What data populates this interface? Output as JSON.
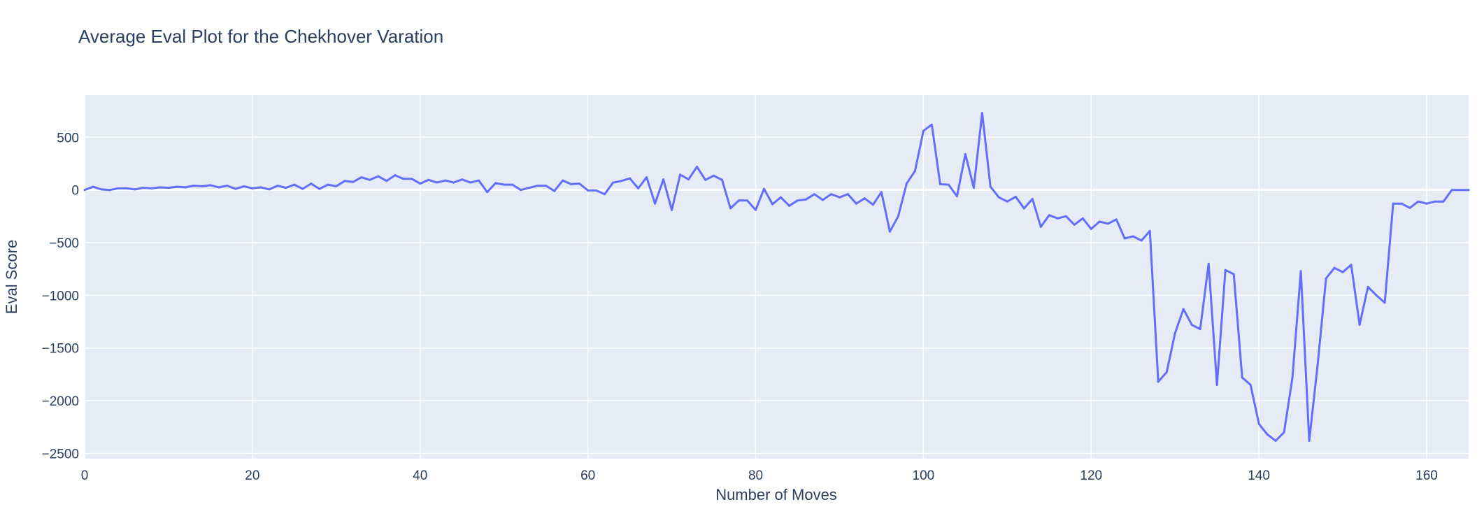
{
  "chart_data": {
    "type": "line",
    "title": "Average Eval Plot for the Chekhover Varation",
    "xlabel": "Number of Moves",
    "ylabel": "Eval Score",
    "xlim": [
      0,
      165
    ],
    "ylim": [
      -2550,
      900
    ],
    "xticks": [
      0,
      20,
      40,
      60,
      80,
      100,
      120,
      140,
      160
    ],
    "yticks": [
      500,
      0,
      -500,
      -1000,
      -1500,
      -2000,
      -2500
    ],
    "ytick_labels": [
      "500",
      "0",
      "−500",
      "−1000",
      "−1500",
      "−2000",
      "−2500"
    ],
    "grid": true,
    "plot_background": "#e5ecf6",
    "line_color": "#636efa",
    "series": [
      {
        "x": [
          0,
          1,
          2,
          3,
          4,
          5,
          6,
          7,
          8,
          9,
          10,
          11,
          12,
          13,
          14,
          15,
          16,
          17,
          18,
          19,
          20,
          21,
          22,
          23,
          24,
          25,
          26,
          27,
          28,
          29,
          30,
          31,
          32,
          33,
          34,
          35,
          36,
          37,
          38,
          39,
          40,
          41,
          42,
          43,
          44,
          45,
          46,
          47,
          48,
          49,
          50,
          51,
          52,
          53,
          54,
          55,
          56,
          57,
          58,
          59,
          60,
          61,
          62,
          63,
          64,
          65,
          66,
          67,
          68,
          69,
          70,
          71,
          72,
          73,
          74,
          75,
          76,
          77,
          78,
          79,
          80,
          81,
          82,
          83,
          84,
          85,
          86,
          87,
          88,
          89,
          90,
          91,
          92,
          93,
          94,
          95,
          96,
          97,
          98,
          99,
          100,
          101,
          102,
          103,
          104,
          105,
          106,
          107,
          108,
          109,
          110,
          111,
          112,
          113,
          114,
          115,
          116,
          117,
          118,
          119,
          120,
          121,
          122,
          123,
          124,
          125,
          126,
          127,
          128,
          129,
          130,
          131,
          132,
          133,
          134,
          135,
          136,
          137,
          138,
          139,
          140,
          141,
          142,
          143,
          144,
          145,
          146,
          147,
          148,
          149,
          150,
          151,
          152,
          153,
          154,
          155,
          156,
          157,
          158,
          159,
          160,
          161,
          162,
          163,
          164,
          165
        ],
        "y": [
          0,
          30,
          5,
          0,
          15,
          15,
          5,
          20,
          15,
          25,
          20,
          30,
          25,
          40,
          35,
          45,
          25,
          40,
          10,
          35,
          15,
          25,
          5,
          40,
          20,
          50,
          10,
          60,
          10,
          50,
          35,
          85,
          75,
          120,
          95,
          130,
          85,
          140,
          105,
          105,
          60,
          95,
          70,
          90,
          70,
          100,
          70,
          90,
          -20,
          65,
          50,
          50,
          0,
          20,
          40,
          40,
          -10,
          90,
          55,
          60,
          -5,
          -5,
          -40,
          70,
          85,
          110,
          15,
          120,
          -130,
          100,
          -190,
          145,
          100,
          220,
          95,
          135,
          95,
          -175,
          -100,
          -100,
          -190,
          10,
          -135,
          -70,
          -150,
          -100,
          -90,
          -40,
          -95,
          -40,
          -70,
          -40,
          -130,
          -80,
          -140,
          -20,
          -395,
          -250,
          60,
          180,
          560,
          620,
          55,
          50,
          -60,
          340,
          20,
          730,
          30,
          -70,
          -110,
          -65,
          -175,
          -85,
          -350,
          -240,
          -270,
          -250,
          -330,
          -270,
          -370,
          -300,
          -320,
          -280,
          -460,
          -440,
          -480,
          -390,
          -1820,
          -1730,
          -1360,
          -1130,
          -1280,
          -1320,
          -700,
          -1850,
          -760,
          -800,
          -1780,
          -1850,
          -2220,
          -2320,
          -2380,
          -2300,
          -1780,
          -770,
          -2380,
          -1660,
          -840,
          -740,
          -780,
          -710,
          -1280,
          -920,
          -1000,
          -1070,
          -130,
          -130,
          -170,
          -110,
          -130,
          -110,
          -110,
          0,
          0,
          0
        ]
      }
    ]
  }
}
